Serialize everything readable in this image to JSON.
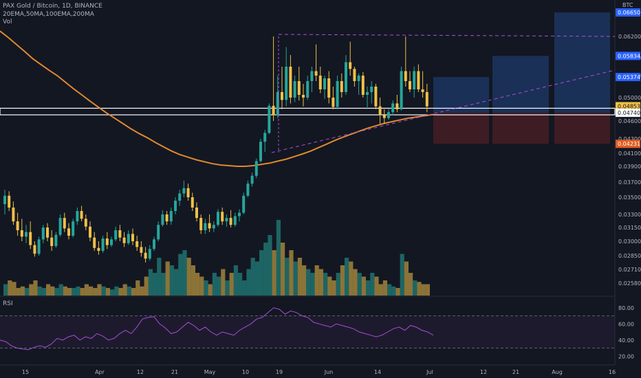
{
  "header": {
    "symbol_line": "PAX Gold / Bitcoin, 1D, BINANCE",
    "ma_line": "20EMA,50MA,100EMA,200MA",
    "vol_line": "Vol"
  },
  "rsi_panel": {
    "label": "RSI",
    "levels": [
      80.0,
      60.0,
      40.0,
      20.0
    ],
    "band": [
      30,
      70
    ]
  },
  "colors": {
    "background": "#131722",
    "up": "#26a69a",
    "down": "#f0c048",
    "ma200": "#e08a2e",
    "rsi_line": "#a64fd6",
    "projection": "#b04ce0",
    "long_target": "#1e3a68",
    "long_stop": "#4a1e26",
    "price_tag": "#2962ff",
    "current_tag": "#f0c048",
    "stop_tag": "#e05d22"
  },
  "chart_data": {
    "type": "candlestick",
    "title": "PAX Gold / Bitcoin, 1D, BINANCE",
    "y_axis": {
      "unit": "BTC",
      "ticks": [
        "0.06200",
        "0.05800",
        "0.05400",
        "0.05000",
        "0.04600",
        "0.04300",
        "0.04100",
        "0.03900",
        "0.03700",
        "0.03500",
        "0.03300",
        "0.03150",
        "0.03000",
        "0.02850",
        "0.02710",
        "0.02580"
      ],
      "price_tags": [
        {
          "label": "0.06650",
          "kind": "target"
        },
        {
          "label": "0.05834",
          "kind": "target"
        },
        {
          "label": "0.05374",
          "kind": "target"
        },
        {
          "label": "0.04853",
          "kind": "current"
        },
        {
          "label": "0.04740",
          "kind": "entry"
        },
        {
          "label": "0.04231",
          "kind": "stop"
        }
      ]
    },
    "x_axis": {
      "ticks": [
        "15",
        "Apr",
        "12",
        "21",
        "May",
        "10",
        "19",
        "Jun",
        "14",
        "Jul",
        "12",
        "21",
        "Aug",
        "16"
      ]
    },
    "candles": [
      {
        "o": 0.0342,
        "h": 0.036,
        "l": 0.033,
        "c": 0.0352
      },
      {
        "o": 0.0352,
        "h": 0.0358,
        "l": 0.0334,
        "c": 0.0338
      },
      {
        "o": 0.0338,
        "h": 0.0345,
        "l": 0.0318,
        "c": 0.0322
      },
      {
        "o": 0.0322,
        "h": 0.0332,
        "l": 0.0306,
        "c": 0.0312
      },
      {
        "o": 0.0312,
        "h": 0.0325,
        "l": 0.03,
        "c": 0.0305
      },
      {
        "o": 0.0305,
        "h": 0.0318,
        "l": 0.0298,
        "c": 0.031
      },
      {
        "o": 0.031,
        "h": 0.0322,
        "l": 0.0292,
        "c": 0.0296
      },
      {
        "o": 0.0296,
        "h": 0.03,
        "l": 0.0284,
        "c": 0.0287
      },
      {
        "o": 0.0287,
        "h": 0.0305,
        "l": 0.0285,
        "c": 0.0302
      },
      {
        "o": 0.0302,
        "h": 0.0318,
        "l": 0.0298,
        "c": 0.0315
      },
      {
        "o": 0.0315,
        "h": 0.032,
        "l": 0.03,
        "c": 0.0304
      },
      {
        "o": 0.0304,
        "h": 0.0312,
        "l": 0.029,
        "c": 0.0295
      },
      {
        "o": 0.0295,
        "h": 0.031,
        "l": 0.0293,
        "c": 0.0307
      },
      {
        "o": 0.0307,
        "h": 0.033,
        "l": 0.0305,
        "c": 0.0326
      },
      {
        "o": 0.0326,
        "h": 0.0332,
        "l": 0.031,
        "c": 0.0314
      },
      {
        "o": 0.0314,
        "h": 0.032,
        "l": 0.0302,
        "c": 0.0306
      },
      {
        "o": 0.0306,
        "h": 0.0325,
        "l": 0.0304,
        "c": 0.0322
      },
      {
        "o": 0.0322,
        "h": 0.0338,
        "l": 0.0318,
        "c": 0.0334
      },
      {
        "o": 0.0334,
        "h": 0.034,
        "l": 0.0322,
        "c": 0.0325
      },
      {
        "o": 0.0325,
        "h": 0.033,
        "l": 0.0312,
        "c": 0.0316
      },
      {
        "o": 0.0316,
        "h": 0.0322,
        "l": 0.03,
        "c": 0.0304
      },
      {
        "o": 0.0304,
        "h": 0.031,
        "l": 0.029,
        "c": 0.0293
      },
      {
        "o": 0.0293,
        "h": 0.03,
        "l": 0.0286,
        "c": 0.029
      },
      {
        "o": 0.029,
        "h": 0.0306,
        "l": 0.0288,
        "c": 0.0303
      },
      {
        "o": 0.0303,
        "h": 0.031,
        "l": 0.0292,
        "c": 0.0296
      },
      {
        "o": 0.0296,
        "h": 0.0305,
        "l": 0.0294,
        "c": 0.0302
      },
      {
        "o": 0.0302,
        "h": 0.0316,
        "l": 0.03,
        "c": 0.0312
      },
      {
        "o": 0.0312,
        "h": 0.0318,
        "l": 0.03,
        "c": 0.0304
      },
      {
        "o": 0.0304,
        "h": 0.031,
        "l": 0.0294,
        "c": 0.0298
      },
      {
        "o": 0.0298,
        "h": 0.0312,
        "l": 0.0296,
        "c": 0.0308
      },
      {
        "o": 0.0308,
        "h": 0.0314,
        "l": 0.0296,
        "c": 0.03
      },
      {
        "o": 0.03,
        "h": 0.0306,
        "l": 0.029,
        "c": 0.0294
      },
      {
        "o": 0.0294,
        "h": 0.03,
        "l": 0.0284,
        "c": 0.0288
      },
      {
        "o": 0.0288,
        "h": 0.0294,
        "l": 0.0278,
        "c": 0.0282
      },
      {
        "o": 0.0282,
        "h": 0.0296,
        "l": 0.028,
        "c": 0.0292
      },
      {
        "o": 0.0292,
        "h": 0.0305,
        "l": 0.029,
        "c": 0.0302
      },
      {
        "o": 0.0302,
        "h": 0.0322,
        "l": 0.03,
        "c": 0.0318
      },
      {
        "o": 0.0318,
        "h": 0.0335,
        "l": 0.0316,
        "c": 0.033
      },
      {
        "o": 0.033,
        "h": 0.0334,
        "l": 0.0318,
        "c": 0.0322
      },
      {
        "o": 0.0322,
        "h": 0.0338,
        "l": 0.0318,
        "c": 0.0334
      },
      {
        "o": 0.0334,
        "h": 0.035,
        "l": 0.033,
        "c": 0.0346
      },
      {
        "o": 0.0346,
        "h": 0.036,
        "l": 0.034,
        "c": 0.0355
      },
      {
        "o": 0.0355,
        "h": 0.0372,
        "l": 0.035,
        "c": 0.0362
      },
      {
        "o": 0.0362,
        "h": 0.0368,
        "l": 0.0346,
        "c": 0.035
      },
      {
        "o": 0.035,
        "h": 0.0356,
        "l": 0.0334,
        "c": 0.0338
      },
      {
        "o": 0.0338,
        "h": 0.0344,
        "l": 0.0322,
        "c": 0.0326
      },
      {
        "o": 0.0326,
        "h": 0.033,
        "l": 0.0308,
        "c": 0.0312
      },
      {
        "o": 0.0312,
        "h": 0.0325,
        "l": 0.0308,
        "c": 0.032
      },
      {
        "o": 0.032,
        "h": 0.033,
        "l": 0.031,
        "c": 0.0314
      },
      {
        "o": 0.0314,
        "h": 0.0322,
        "l": 0.031,
        "c": 0.0318
      },
      {
        "o": 0.0318,
        "h": 0.0336,
        "l": 0.0316,
        "c": 0.0333
      },
      {
        "o": 0.0333,
        "h": 0.0338,
        "l": 0.0318,
        "c": 0.0322
      },
      {
        "o": 0.0322,
        "h": 0.033,
        "l": 0.0316,
        "c": 0.0326
      },
      {
        "o": 0.0326,
        "h": 0.0335,
        "l": 0.0315,
        "c": 0.0318
      },
      {
        "o": 0.0318,
        "h": 0.0332,
        "l": 0.0316,
        "c": 0.0328
      },
      {
        "o": 0.0328,
        "h": 0.0336,
        "l": 0.0322,
        "c": 0.0332
      },
      {
        "o": 0.0332,
        "h": 0.0356,
        "l": 0.033,
        "c": 0.0352
      },
      {
        "o": 0.0352,
        "h": 0.0372,
        "l": 0.035,
        "c": 0.0368
      },
      {
        "o": 0.0368,
        "h": 0.0382,
        "l": 0.0364,
        "c": 0.0378
      },
      {
        "o": 0.0378,
        "h": 0.0402,
        "l": 0.0375,
        "c": 0.0398
      },
      {
        "o": 0.0398,
        "h": 0.043,
        "l": 0.0396,
        "c": 0.0426
      },
      {
        "o": 0.0426,
        "h": 0.0445,
        "l": 0.0412,
        "c": 0.044
      },
      {
        "o": 0.044,
        "h": 0.049,
        "l": 0.0438,
        "c": 0.0486
      },
      {
        "o": 0.0486,
        "h": 0.062,
        "l": 0.046,
        "c": 0.047
      },
      {
        "o": 0.047,
        "h": 0.054,
        "l": 0.0465,
        "c": 0.051
      },
      {
        "o": 0.051,
        "h": 0.056,
        "l": 0.048,
        "c": 0.0496
      },
      {
        "o": 0.0496,
        "h": 0.06,
        "l": 0.0485,
        "c": 0.056
      },
      {
        "o": 0.056,
        "h": 0.0585,
        "l": 0.049,
        "c": 0.05
      },
      {
        "o": 0.05,
        "h": 0.054,
        "l": 0.0492,
        "c": 0.053
      },
      {
        "o": 0.053,
        "h": 0.056,
        "l": 0.0495,
        "c": 0.0505
      },
      {
        "o": 0.0505,
        "h": 0.0525,
        "l": 0.0485,
        "c": 0.05
      },
      {
        "o": 0.05,
        "h": 0.054,
        "l": 0.0496,
        "c": 0.053
      },
      {
        "o": 0.053,
        "h": 0.056,
        "l": 0.051,
        "c": 0.055
      },
      {
        "o": 0.055,
        "h": 0.0605,
        "l": 0.053,
        "c": 0.054
      },
      {
        "o": 0.054,
        "h": 0.056,
        "l": 0.0508,
        "c": 0.0515
      },
      {
        "o": 0.0515,
        "h": 0.054,
        "l": 0.0498,
        "c": 0.0535
      },
      {
        "o": 0.0535,
        "h": 0.055,
        "l": 0.049,
        "c": 0.05
      },
      {
        "o": 0.05,
        "h": 0.052,
        "l": 0.048,
        "c": 0.0484
      },
      {
        "o": 0.0484,
        "h": 0.054,
        "l": 0.048,
        "c": 0.053
      },
      {
        "o": 0.053,
        "h": 0.0545,
        "l": 0.05,
        "c": 0.051
      },
      {
        "o": 0.051,
        "h": 0.0585,
        "l": 0.0505,
        "c": 0.057
      },
      {
        "o": 0.057,
        "h": 0.061,
        "l": 0.054,
        "c": 0.0555
      },
      {
        "o": 0.0555,
        "h": 0.056,
        "l": 0.052,
        "c": 0.053
      },
      {
        "o": 0.053,
        "h": 0.0545,
        "l": 0.0505,
        "c": 0.054
      },
      {
        "o": 0.054,
        "h": 0.0548,
        "l": 0.05,
        "c": 0.0505
      },
      {
        "o": 0.0505,
        "h": 0.052,
        "l": 0.048,
        "c": 0.051
      },
      {
        "o": 0.051,
        "h": 0.053,
        "l": 0.049,
        "c": 0.052
      },
      {
        "o": 0.052,
        "h": 0.0525,
        "l": 0.048,
        "c": 0.0485
      },
      {
        "o": 0.0485,
        "h": 0.05,
        "l": 0.0455,
        "c": 0.047
      },
      {
        "o": 0.047,
        "h": 0.048,
        "l": 0.0455,
        "c": 0.0465
      },
      {
        "o": 0.0465,
        "h": 0.048,
        "l": 0.0462,
        "c": 0.0475
      },
      {
        "o": 0.0475,
        "h": 0.0495,
        "l": 0.047,
        "c": 0.049
      },
      {
        "o": 0.049,
        "h": 0.0505,
        "l": 0.0475,
        "c": 0.048
      },
      {
        "o": 0.048,
        "h": 0.056,
        "l": 0.0478,
        "c": 0.055
      },
      {
        "o": 0.055,
        "h": 0.062,
        "l": 0.052,
        "c": 0.053
      },
      {
        "o": 0.053,
        "h": 0.055,
        "l": 0.051,
        "c": 0.0515
      },
      {
        "o": 0.0515,
        "h": 0.056,
        "l": 0.05,
        "c": 0.055
      },
      {
        "o": 0.055,
        "h": 0.0565,
        "l": 0.051,
        "c": 0.0515
      },
      {
        "o": 0.0515,
        "h": 0.055,
        "l": 0.05,
        "c": 0.051
      },
      {
        "o": 0.051,
        "h": 0.0525,
        "l": 0.0475,
        "c": 0.0485
      }
    ],
    "volume_levels": [
      0.15,
      0.2,
      0.18,
      0.1,
      0.12,
      0.1,
      0.15,
      0.2,
      0.12,
      0.1,
      0.15,
      0.12,
      0.1,
      0.15,
      0.12,
      0.1,
      0.1,
      0.12,
      0.1,
      0.15,
      0.12,
      0.1,
      0.15,
      0.12,
      0.1,
      0.08,
      0.12,
      0.1,
      0.15,
      0.12,
      0.1,
      0.2,
      0.12,
      0.25,
      0.35,
      0.3,
      0.5,
      0.3,
      0.45,
      0.4,
      0.35,
      0.55,
      0.6,
      0.5,
      0.4,
      0.3,
      0.25,
      0.2,
      0.15,
      0.3,
      0.25,
      0.35,
      0.2,
      0.3,
      0.4,
      0.3,
      0.2,
      0.35,
      0.5,
      0.45,
      0.6,
      0.7,
      0.8,
      0.6,
      1.0,
      0.7,
      0.5,
      0.6,
      0.45,
      0.5,
      0.4,
      0.35,
      0.3,
      0.4,
      0.35,
      0.3,
      0.25,
      0.2,
      0.3,
      0.4,
      0.5,
      0.45,
      0.35,
      0.3,
      0.25,
      0.2,
      0.3,
      0.25,
      0.15,
      0.2,
      0.15,
      0.12,
      0.1,
      0.55,
      0.45,
      0.3,
      0.2,
      0.18,
      0.15,
      0.15
    ],
    "ma200": [
      0.063,
      0.0618,
      0.0605,
      0.0592,
      0.0578,
      0.0565,
      0.0552,
      0.054,
      0.0528,
      0.0516,
      0.0505,
      0.0494,
      0.0484,
      0.0474,
      0.0465,
      0.0456,
      0.0447,
      0.0439,
      0.0432,
      0.0425,
      0.0419,
      0.0413,
      0.0408,
      0.0404,
      0.04,
      0.0397,
      0.0394,
      0.0392,
      0.0391,
      0.039,
      0.039,
      0.0391,
      0.0393,
      0.0395,
      0.0398,
      0.0401,
      0.0405,
      0.0409,
      0.0413,
      0.0418,
      0.0423,
      0.0428,
      0.0433,
      0.0438,
      0.0443,
      0.0448,
      0.0452,
      0.0456,
      0.0459,
      0.0462,
      0.0465,
      0.0467,
      0.0469,
      0.0471
    ],
    "rsi": [
      40,
      38,
      33,
      30,
      29,
      28,
      31,
      33,
      31,
      35,
      42,
      40,
      44,
      46,
      40,
      44,
      42,
      48,
      45,
      40,
      42,
      48,
      52,
      48,
      56,
      66,
      68,
      69,
      60,
      55,
      48,
      50,
      56,
      62,
      58,
      52,
      56,
      50,
      46,
      50,
      48,
      46,
      52,
      56,
      60,
      66,
      68,
      74,
      80,
      78,
      72,
      76,
      74,
      70,
      68,
      62,
      60,
      58,
      56,
      60,
      58,
      56,
      54,
      50,
      48,
      46,
      44,
      46,
      50,
      54,
      56,
      52,
      58,
      56,
      52,
      50,
      46
    ],
    "annotations": {
      "box_top": 0.04853,
      "box_bottom": 0.0474,
      "resistance": 0.062,
      "targets": [
        0.05374,
        0.05834,
        0.0665
      ],
      "stop": 0.04231
    }
  }
}
